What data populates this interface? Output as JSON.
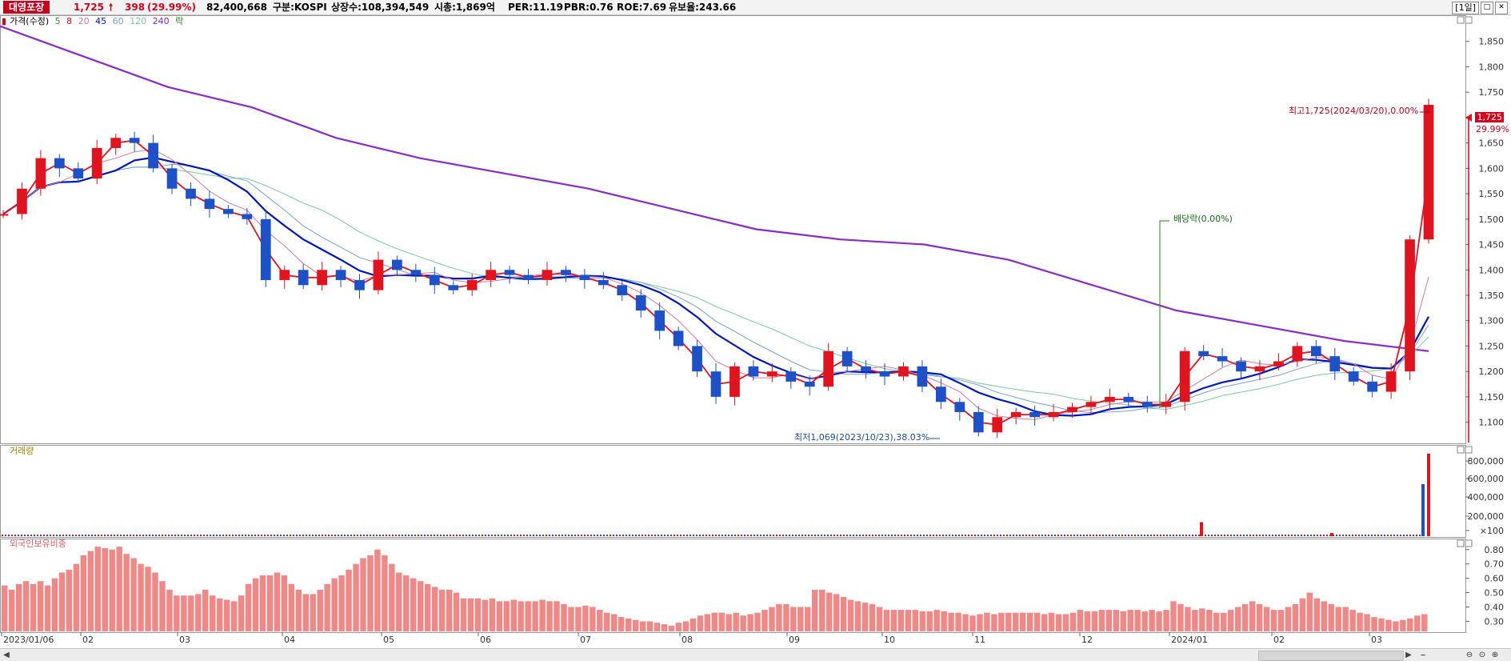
{
  "header": {
    "stock_name": "대영포장",
    "price": "1,725",
    "change_arrow": "🠕",
    "change": "398",
    "change_pct": "(29.99%)",
    "volume": "82,400,668",
    "market": "구분:KOSPI",
    "listed": "상장수:108,394,549",
    "market_cap": "시총:1,869억",
    "per": "PER:11.19",
    "pbr": "PBR:0.76",
    "roe": "ROE:7.69",
    "float_ratio": "유보율:243.66",
    "period": "[1일]",
    "restore_icon": "restore-window-icon",
    "close_icon": "close-window-icon"
  },
  "price_legend": {
    "title": "가격(수정)",
    "ma": [
      {
        "label": "5",
        "color": "#2fa82f"
      },
      {
        "label": "8",
        "color": "#e0141e"
      },
      {
        "label": "20",
        "color": "#d07aa8"
      },
      {
        "label": "45",
        "color": "#0018b8"
      },
      {
        "label": "60",
        "color": "#7aa0d8"
      },
      {
        "label": "120",
        "color": "#7ac8a0"
      },
      {
        "label": "240",
        "color": "#8a2bc8"
      }
    ],
    "ex_label": "락"
  },
  "volume_panel": {
    "title": "거래량"
  },
  "foreign_panel": {
    "title": "외국인보유비중"
  },
  "annotations": {
    "high": "최고1,725(2024/03/20),0.00%",
    "high_marker": "상",
    "low": "최저1,069(2023/10/23),38.03%",
    "dividend": "배당락(0.00%)",
    "last_price_tag": "1,725",
    "last_pct_tag": "29.99%"
  },
  "colors": {
    "up": "#e0141e",
    "down": "#1e50c8",
    "ma240": "#8a2bc8",
    "ma45": "#0018b8",
    "ma8": "#e0141e",
    "foreign": "#f08888"
  },
  "chart_data": [
    {
      "type": "candlestick",
      "title": "가격(수정)",
      "ylim": [
        1060,
        1900
      ],
      "y_ticks": [
        "1,850",
        "1,800",
        "1,750",
        "1,700",
        "1,650",
        "1,600",
        "1,550",
        "1,500",
        "1,450",
        "1,400",
        "1,350",
        "1,300",
        "1,250",
        "1,200",
        "1,150",
        "1,100"
      ],
      "x_ticks": [
        "2023/01/06",
        "02",
        "03",
        "04",
        "05",
        "06",
        "07",
        "08",
        "09",
        "10",
        "11",
        "12",
        "2024/01",
        "02",
        "03"
      ],
      "close_approx": [
        1510,
        1560,
        1620,
        1600,
        1580,
        1640,
        1660,
        1650,
        1600,
        1560,
        1540,
        1520,
        1510,
        1500,
        1380,
        1400,
        1370,
        1400,
        1380,
        1360,
        1420,
        1400,
        1390,
        1370,
        1360,
        1380,
        1400,
        1390,
        1380,
        1400,
        1390,
        1380,
        1370,
        1350,
        1320,
        1280,
        1250,
        1200,
        1150,
        1210,
        1190,
        1200,
        1180,
        1170,
        1240,
        1210,
        1200,
        1190,
        1210,
        1170,
        1140,
        1120,
        1080,
        1110,
        1120,
        1110,
        1120,
        1130,
        1140,
        1150,
        1140,
        1130,
        1140,
        1240,
        1230,
        1220,
        1200,
        1210,
        1220,
        1250,
        1230,
        1200,
        1180,
        1160,
        1200,
        1460,
        1725
      ],
      "ma240_approx": [
        1880,
        1820,
        1760,
        1720,
        1660,
        1620,
        1590,
        1560,
        1520,
        1480,
        1460,
        1450,
        1420,
        1370,
        1320,
        1290,
        1260,
        1240
      ],
      "high": {
        "value": 1725,
        "date": "2024/03/20"
      },
      "low": {
        "value": 1069,
        "date": "2023/10/23"
      }
    },
    {
      "type": "bar",
      "title": "거래량",
      "y_ticks": [
        "800,000",
        "600,000",
        "400,000",
        "200,000",
        "×100"
      ],
      "spikes": [
        {
          "x": "2024/01",
          "value": 140000
        },
        {
          "x": "2024/03 (prev)",
          "value": 520000
        },
        {
          "x": "2024/03/20",
          "value": 824007
        }
      ]
    },
    {
      "type": "bar",
      "title": "외국인보유비중",
      "y_ticks": [
        "0.80",
        "0.70",
        "0.60",
        "0.50",
        "0.40",
        "0.30"
      ],
      "values": [
        0.55,
        0.52,
        0.56,
        0.58,
        0.56,
        0.58,
        0.55,
        0.6,
        0.64,
        0.66,
        0.7,
        0.76,
        0.79,
        0.82,
        0.81,
        0.8,
        0.82,
        0.77,
        0.74,
        0.7,
        0.68,
        0.64,
        0.58,
        0.52,
        0.48,
        0.48,
        0.48,
        0.49,
        0.52,
        0.48,
        0.46,
        0.45,
        0.44,
        0.48,
        0.56,
        0.6,
        0.62,
        0.62,
        0.64,
        0.62,
        0.56,
        0.52,
        0.49,
        0.49,
        0.52,
        0.56,
        0.6,
        0.62,
        0.66,
        0.7,
        0.74,
        0.76,
        0.8,
        0.76,
        0.7,
        0.64,
        0.62,
        0.6,
        0.58,
        0.56,
        0.54,
        0.52,
        0.52,
        0.5,
        0.46,
        0.46,
        0.46,
        0.45,
        0.46,
        0.44,
        0.44,
        0.45,
        0.44,
        0.44,
        0.44,
        0.45,
        0.44,
        0.44,
        0.42,
        0.4,
        0.4,
        0.41,
        0.4,
        0.38,
        0.36,
        0.35,
        0.33,
        0.32,
        0.31,
        0.3,
        0.3,
        0.29,
        0.28,
        0.27,
        0.29,
        0.3,
        0.32,
        0.34,
        0.35,
        0.36,
        0.36,
        0.35,
        0.36,
        0.34,
        0.35,
        0.36,
        0.38,
        0.4,
        0.42,
        0.42,
        0.4,
        0.4,
        0.4,
        0.52,
        0.52,
        0.5,
        0.49,
        0.47,
        0.45,
        0.44,
        0.43,
        0.42,
        0.4,
        0.38,
        0.38,
        0.38,
        0.38,
        0.38,
        0.37,
        0.37,
        0.38,
        0.37,
        0.36,
        0.36,
        0.35,
        0.34,
        0.35,
        0.36,
        0.35,
        0.36,
        0.36,
        0.36,
        0.36,
        0.36,
        0.36,
        0.35,
        0.36,
        0.35,
        0.35,
        0.36,
        0.38,
        0.37,
        0.37,
        0.38,
        0.38,
        0.38,
        0.37,
        0.38,
        0.38,
        0.37,
        0.38,
        0.37,
        0.38,
        0.44,
        0.42,
        0.4,
        0.38,
        0.39,
        0.38,
        0.36,
        0.36,
        0.38,
        0.4,
        0.42,
        0.44,
        0.42,
        0.4,
        0.38,
        0.38,
        0.4,
        0.42,
        0.46,
        0.5,
        0.46,
        0.44,
        0.42,
        0.4,
        0.4,
        0.38,
        0.36,
        0.35,
        0.33,
        0.32,
        0.31,
        0.3,
        0.31,
        0.32,
        0.34,
        0.35
      ]
    }
  ]
}
